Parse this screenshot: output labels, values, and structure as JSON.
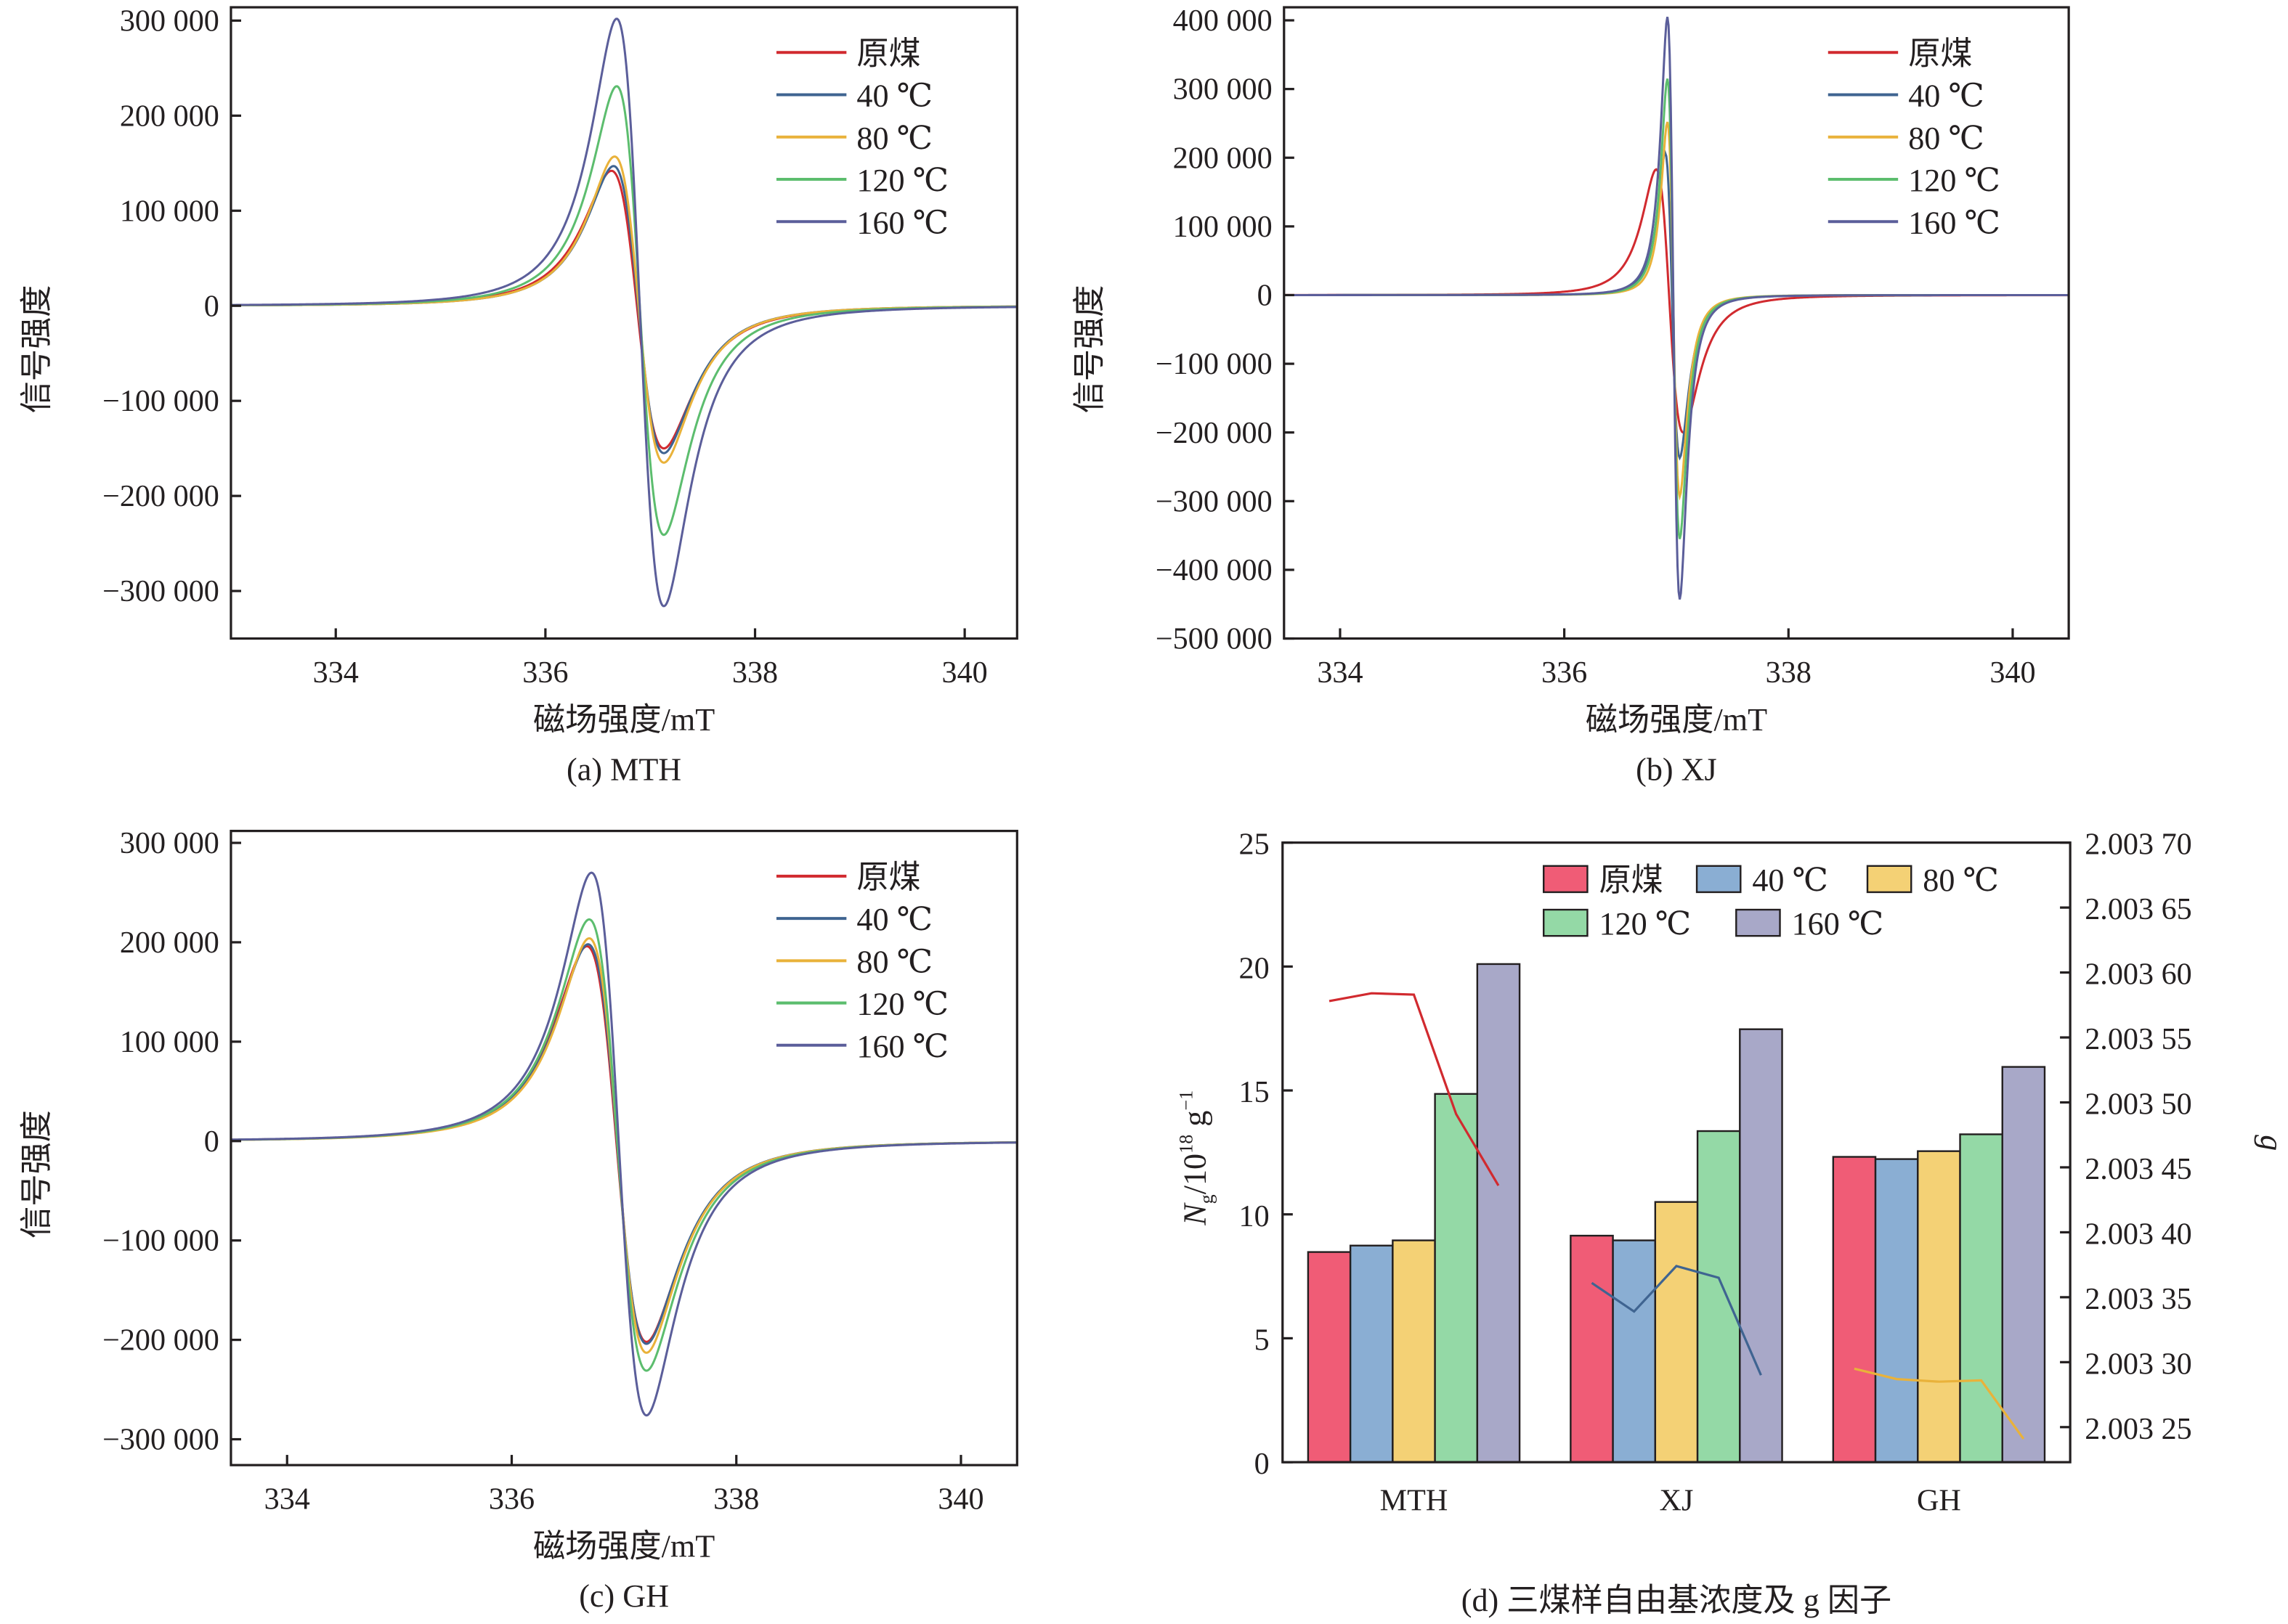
{
  "figure": {
    "series_names": [
      "原煤",
      "40 ℃",
      "80 ℃",
      "120 ℃",
      "160 ℃"
    ],
    "line_colors": [
      "#d12a2f",
      "#3f6491",
      "#e9b23a",
      "#5cbd6e",
      "#5b5e9a"
    ],
    "bar_colors": [
      "#f05c76",
      "#8aaed3",
      "#f4d175",
      "#94d9a6",
      "#a8a8c8"
    ]
  },
  "chart_data": [
    {
      "id": "a",
      "type": "line",
      "caption": "(a) MTH",
      "title": "",
      "xlabel": "磁场强度/mT",
      "ylabel": "信号强度",
      "xlim": [
        333.0,
        340.5
      ],
      "ylim": [
        -350000,
        314000
      ],
      "xticks": [
        334,
        336,
        338,
        340
      ],
      "xtick_labels": [
        "334",
        "336",
        "338",
        "340"
      ],
      "yticks": [
        300000,
        200000,
        100000,
        0,
        -100000,
        -200000,
        -300000
      ],
      "ytick_labels": [
        "300 000",
        "200 000",
        "100 000",
        "0",
        "−100 000",
        "−200 000",
        "−300 000"
      ],
      "legend_position": "top-right",
      "series": [
        {
          "name": "原煤",
          "peak_x": 336.63,
          "peak_y": 142000,
          "trough_x": 337.13,
          "trough_y": -150000
        },
        {
          "name": "40 ℃",
          "peak_x": 336.65,
          "peak_y": 147000,
          "trough_x": 337.13,
          "trough_y": -155000
        },
        {
          "name": "80 ℃",
          "peak_x": 336.66,
          "peak_y": 157000,
          "trough_x": 337.13,
          "trough_y": -165000
        },
        {
          "name": "120 ℃",
          "peak_x": 336.68,
          "peak_y": 231000,
          "trough_x": 337.13,
          "trough_y": -241000
        },
        {
          "name": "160 ℃",
          "peak_x": 336.68,
          "peak_y": 302000,
          "trough_x": 337.13,
          "trough_y": -316000
        }
      ]
    },
    {
      "id": "b",
      "type": "line",
      "caption": "(b) XJ",
      "title": "",
      "xlabel": "磁场强度/mT",
      "ylabel": "信号强度",
      "xlim": [
        333.5,
        340.5
      ],
      "ylim": [
        -500000,
        419000
      ],
      "xticks": [
        334,
        336,
        338,
        340
      ],
      "xtick_labels": [
        "334",
        "336",
        "338",
        "340"
      ],
      "yticks": [
        400000,
        300000,
        200000,
        100000,
        0,
        -100000,
        -200000,
        -300000,
        -400000,
        -500000
      ],
      "ytick_labels": [
        "400 000",
        "300 000",
        "200 000",
        "100 000",
        "0",
        "−100 000",
        "−200 000",
        "−300 000",
        "−400 000",
        "−500 000"
      ],
      "legend_position": "top-right",
      "series": [
        {
          "name": "原煤",
          "peak_x": 336.82,
          "peak_y": 183000,
          "trough_x": 337.06,
          "trough_y": -200000
        },
        {
          "name": "40 ℃",
          "peak_x": 336.9,
          "peak_y": 207000,
          "trough_x": 337.03,
          "trough_y": -237000
        },
        {
          "name": "80 ℃",
          "peak_x": 336.92,
          "peak_y": 252000,
          "trough_x": 337.03,
          "trough_y": -293000
        },
        {
          "name": "120 ℃",
          "peak_x": 336.92,
          "peak_y": 315000,
          "trough_x": 337.03,
          "trough_y": -355000
        },
        {
          "name": "160 ℃",
          "peak_x": 336.92,
          "peak_y": 405000,
          "trough_x": 337.03,
          "trough_y": -443000
        }
      ]
    },
    {
      "id": "c",
      "type": "line",
      "caption": "(c) GH",
      "title": "",
      "xlabel": "磁场强度/mT",
      "ylabel": "信号强度",
      "xlim": [
        333.5,
        340.5
      ],
      "ylim": [
        -326000,
        312000
      ],
      "xticks": [
        334,
        336,
        338,
        340
      ],
      "xtick_labels": [
        "334",
        "336",
        "338",
        "340"
      ],
      "yticks": [
        300000,
        200000,
        100000,
        0,
        -100000,
        -200000,
        -300000
      ],
      "ytick_labels": [
        "300 000",
        "200 000",
        "100 000",
        "0",
        "−100 000",
        "−200 000",
        "−300 000"
      ],
      "legend_position": "top-right",
      "series": [
        {
          "name": "原煤",
          "peak_x": 336.67,
          "peak_y": 196000,
          "trough_x": 337.2,
          "trough_y": -202000
        },
        {
          "name": "40 ℃",
          "peak_x": 336.68,
          "peak_y": 198000,
          "trough_x": 337.2,
          "trough_y": -204000
        },
        {
          "name": "80 ℃",
          "peak_x": 336.69,
          "peak_y": 204000,
          "trough_x": 337.2,
          "trough_y": -213000
        },
        {
          "name": "120 ℃",
          "peak_x": 336.69,
          "peak_y": 223000,
          "trough_x": 337.2,
          "trough_y": -231000
        },
        {
          "name": "160 ℃",
          "peak_x": 336.71,
          "peak_y": 270000,
          "trough_x": 337.2,
          "trough_y": -276000
        }
      ]
    },
    {
      "id": "d",
      "type": "bar",
      "caption": "(d) 三煤样自由基浓度及 g 因子",
      "title": "",
      "xlabel": "",
      "ylabel": "Ng/10^18 g^-1",
      "ylabel_parts": {
        "main": "N",
        "sub": "g",
        "rest": "/10",
        "sup": "18",
        "unit": " g",
        "unit_sup": "−1"
      },
      "y2label": "g",
      "categories": [
        "MTH",
        "XJ",
        "GH"
      ],
      "ylim": [
        0,
        25
      ],
      "yticks": [
        0,
        5,
        10,
        15,
        20,
        25
      ],
      "ytick_labels": [
        "0",
        "5",
        "10",
        "15",
        "20",
        "25"
      ],
      "y2lim": [
        2.003223,
        2.0037
      ],
      "y2ticks": [
        2.0037,
        2.00365,
        2.0036,
        2.00355,
        2.0035,
        2.00345,
        2.0034,
        2.00335,
        2.0033,
        2.00325
      ],
      "y2tick_labels": [
        "2.003 70",
        "2.003 65",
        "2.003 60",
        "2.003 55",
        "2.003 50",
        "2.003 45",
        "2.003 40",
        "2.003 35",
        "2.003 30",
        "2.003 25"
      ],
      "legend_position": "top-right",
      "series": [
        {
          "name": "原煤",
          "values": [
            8.48,
            9.14,
            12.32
          ]
        },
        {
          "name": "40 ℃",
          "values": [
            8.74,
            8.95,
            12.23
          ]
        },
        {
          "name": "80 ℃",
          "values": [
            8.95,
            10.5,
            12.55
          ]
        },
        {
          "name": "120 ℃",
          "values": [
            14.86,
            13.36,
            13.23
          ]
        },
        {
          "name": "160 ℃",
          "values": [
            20.1,
            17.47,
            15.95
          ]
        }
      ],
      "g_factor_lines": [
        {
          "category": "MTH",
          "color": "#d12a2f",
          "values": [
            2.003578,
            2.003584,
            2.003583,
            2.003491,
            2.003436
          ]
        },
        {
          "category": "XJ",
          "color": "#3f6491",
          "values": [
            2.003361,
            2.003339,
            2.003374,
            2.003365,
            2.00329
          ]
        },
        {
          "category": "GH",
          "color": "#e9b23a",
          "values": [
            2.003295,
            2.003287,
            2.003285,
            2.003286,
            2.003241
          ]
        }
      ]
    }
  ]
}
